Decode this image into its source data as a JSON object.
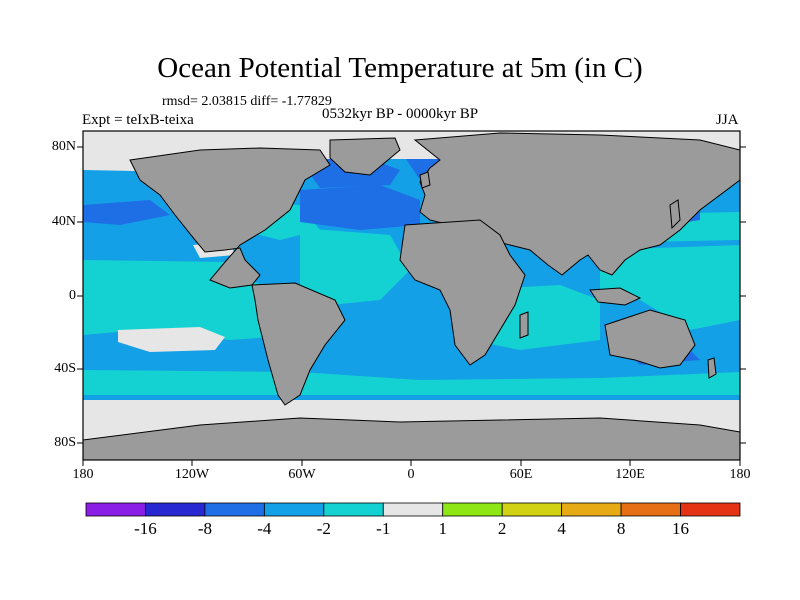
{
  "title": "Ocean Potential Temperature at 5m (in C)",
  "stats_text": "rmsd= 2.03815  diff= -1.77829",
  "left_label": "Expt = teIxB-teixa",
  "center_label": "0532kyr BP - 0000kyr BP",
  "right_label": "JJA",
  "lat_labels": [
    "80N",
    "40N",
    "0",
    "40S",
    "80S"
  ],
  "lon_labels": [
    "180",
    "120W",
    "60W",
    "0",
    "60E",
    "120E",
    "180"
  ],
  "colorbar": {
    "colors": [
      "#8a1ee6",
      "#2828d2",
      "#1e6ee6",
      "#14a0e6",
      "#14d2d2",
      "#e6e6e6",
      "#8ee614",
      "#d2d214",
      "#e6aa14",
      "#e66e14",
      "#e63214"
    ],
    "labels": [
      "-16",
      "-8",
      "-4",
      "-2",
      "-1",
      "1",
      "2",
      "4",
      "8",
      "16"
    ]
  },
  "colors": {
    "land": "#9b9b9b",
    "ocean_base": "#14a0e6",
    "ocean_light": "#14d2d2",
    "ocean_dark": "#1e6ee6",
    "ice": "#e6e6e6"
  }
}
